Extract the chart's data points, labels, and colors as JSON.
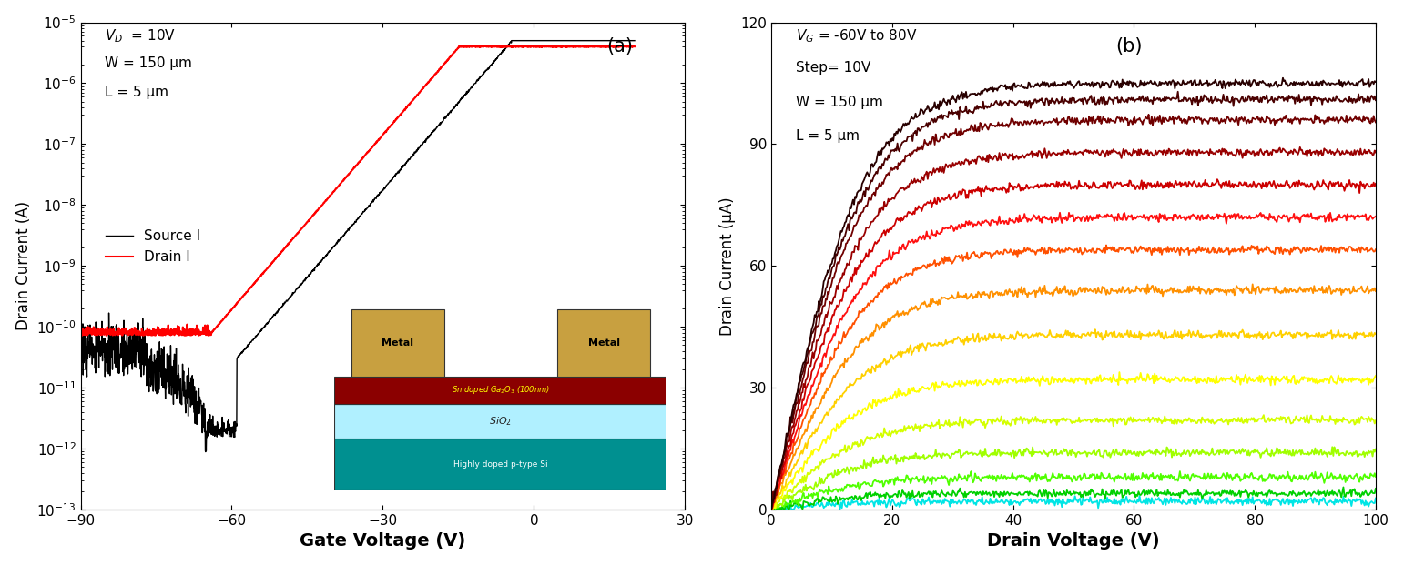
{
  "panel_a": {
    "title_label": "(a)",
    "xlabel": "Gate Voltage (V)",
    "ylabel": "Drain Current (A)",
    "xlim": [
      -90,
      30
    ],
    "ylim_log": [
      -13,
      -5
    ],
    "xticks": [
      -90,
      -60,
      -30,
      0,
      30
    ],
    "legend_source": "Source I",
    "legend_drain": "Drain I",
    "source_color": "#000000",
    "drain_color": "#ff0000",
    "vth": -62,
    "noise_floor_drain": 8e-11,
    "noise_floor_source": 3e-11,
    "drain_sat_current": 4e-06,
    "annot_vd": "V_D = 10V",
    "annot_w": "W = 150 μm",
    "annot_l": "L = 5 μm"
  },
  "panel_b": {
    "title_label": "(b)",
    "xlabel": "Drain Voltage (V)",
    "ylabel": "Drain Current (μA)",
    "xlim": [
      0,
      100
    ],
    "ylim": [
      0,
      120
    ],
    "xticks": [
      0,
      20,
      40,
      60,
      80,
      100
    ],
    "yticks": [
      0,
      30,
      60,
      90,
      120
    ],
    "annot_vg": "V_G = -60V to 80V",
    "annot_step": "Step= 10V",
    "annot_w": "W = 150 μm",
    "annot_l": "L = 5 μm",
    "vg_start": -60,
    "vg_end": 80,
    "vg_step": 10,
    "curve_colors": [
      "#00e5e5",
      "#00d000",
      "#50ff00",
      "#a0ff00",
      "#d4ff00",
      "#ffff00",
      "#ffd000",
      "#ff9000",
      "#ff5000",
      "#ff1010",
      "#cc0000",
      "#990000",
      "#700000",
      "#4a0000",
      "#280000"
    ],
    "idsat_values": [
      2,
      4,
      8,
      14,
      22,
      32,
      43,
      54,
      64,
      72,
      80,
      88,
      96,
      101,
      105
    ]
  }
}
